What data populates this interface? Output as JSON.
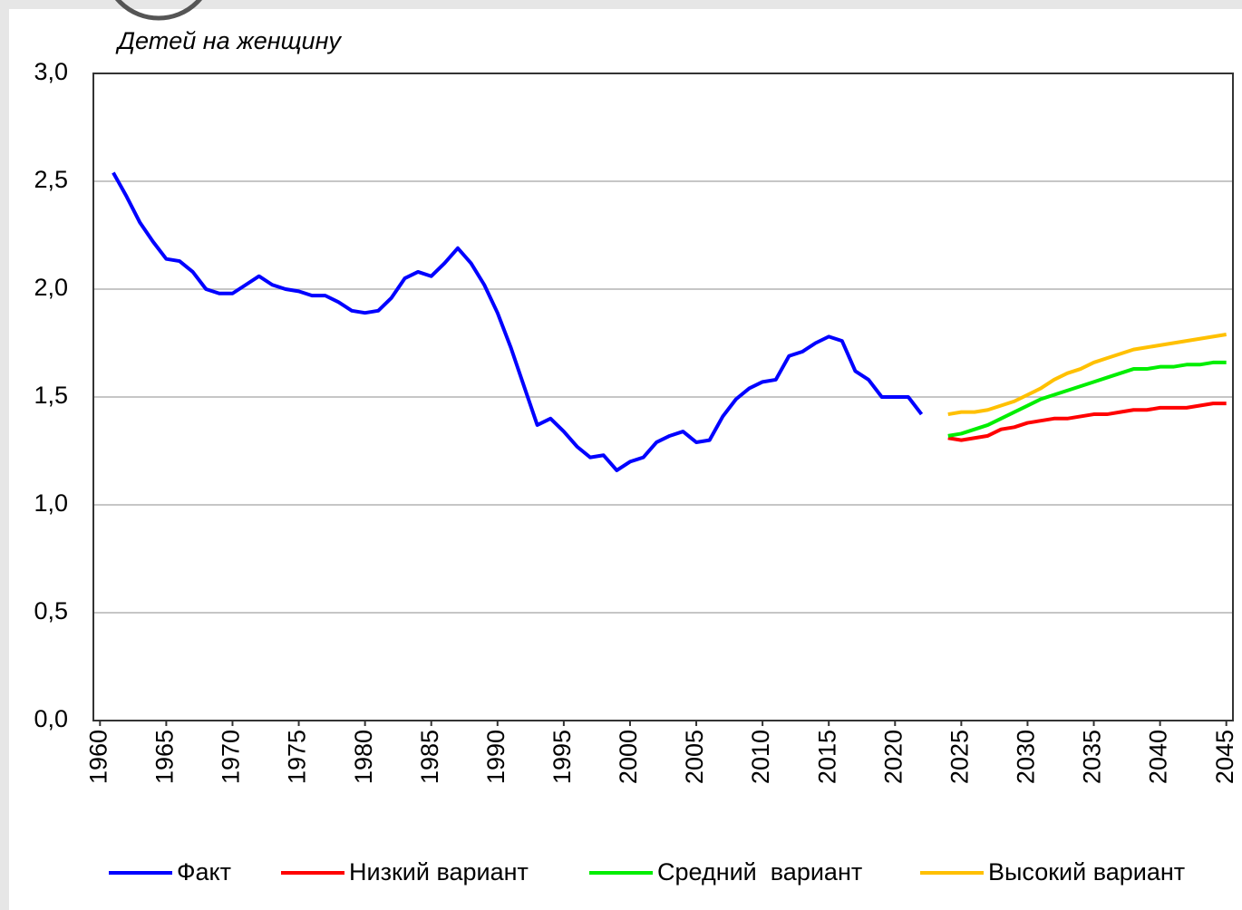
{
  "chart_data": {
    "type": "line",
    "ylabel": "Детей на женщину",
    "xlim": [
      1959.5,
      2045.5
    ],
    "xticks": [
      1960,
      1965,
      1970,
      1975,
      1980,
      1985,
      1990,
      1995,
      2000,
      2005,
      2010,
      2015,
      2020,
      2025,
      2030,
      2035,
      2040,
      2045
    ],
    "ylim": [
      0,
      3
    ],
    "yticks": [
      {
        "value": 0,
        "label": "0,0"
      },
      {
        "value": 0.5,
        "label": "0,5"
      },
      {
        "value": 1,
        "label": "1,0"
      },
      {
        "value": 1.5,
        "label": "1,5"
      },
      {
        "value": 2,
        "label": "2,0"
      },
      {
        "value": 2.5,
        "label": "2,5"
      },
      {
        "value": 3,
        "label": "3,0"
      }
    ],
    "grid": true,
    "legend": "bottom",
    "series": [
      {
        "name": "Факт",
        "color": "#0000ff",
        "x": [
          1961,
          1962,
          1963,
          1964,
          1965,
          1966,
          1967,
          1968,
          1969,
          1970,
          1971,
          1972,
          1973,
          1974,
          1975,
          1976,
          1977,
          1978,
          1979,
          1980,
          1981,
          1982,
          1983,
          1984,
          1985,
          1986,
          1987,
          1988,
          1989,
          1990,
          1991,
          1992,
          1993,
          1994,
          1995,
          1996,
          1997,
          1998,
          1999,
          2000,
          2001,
          2002,
          2003,
          2004,
          2005,
          2006,
          2007,
          2008,
          2009,
          2010,
          2011,
          2012,
          2013,
          2014,
          2015,
          2016,
          2017,
          2018,
          2019,
          2020,
          2021,
          2022
        ],
        "values": [
          2.54,
          2.43,
          2.31,
          2.22,
          2.14,
          2.13,
          2.08,
          2.0,
          1.98,
          1.98,
          2.02,
          2.06,
          2.02,
          2.0,
          1.99,
          1.97,
          1.97,
          1.94,
          1.9,
          1.89,
          1.9,
          1.96,
          2.05,
          2.08,
          2.06,
          2.12,
          2.19,
          2.12,
          2.02,
          1.89,
          1.73,
          1.55,
          1.37,
          1.4,
          1.34,
          1.27,
          1.22,
          1.23,
          1.16,
          1.2,
          1.22,
          1.29,
          1.32,
          1.34,
          1.29,
          1.3,
          1.41,
          1.49,
          1.54,
          1.57,
          1.58,
          1.69,
          1.71,
          1.75,
          1.78,
          1.76,
          1.62,
          1.58,
          1.5,
          1.5,
          1.5,
          1.42
        ]
      },
      {
        "name": "Низкий вариант",
        "color": "#ff0000",
        "x": [
          2024,
          2025,
          2026,
          2027,
          2028,
          2029,
          2030,
          2031,
          2032,
          2033,
          2034,
          2035,
          2036,
          2037,
          2038,
          2039,
          2040,
          2041,
          2042,
          2043,
          2044,
          2045
        ],
        "values": [
          1.31,
          1.3,
          1.31,
          1.32,
          1.35,
          1.36,
          1.38,
          1.39,
          1.4,
          1.4,
          1.41,
          1.42,
          1.42,
          1.43,
          1.44,
          1.44,
          1.45,
          1.45,
          1.45,
          1.46,
          1.47,
          1.47
        ]
      },
      {
        "name": "Средний  вариант",
        "color": "#00ee00",
        "x": [
          2024,
          2025,
          2026,
          2027,
          2028,
          2029,
          2030,
          2031,
          2032,
          2033,
          2034,
          2035,
          2036,
          2037,
          2038,
          2039,
          2040,
          2041,
          2042,
          2043,
          2044,
          2045
        ],
        "values": [
          1.32,
          1.33,
          1.35,
          1.37,
          1.4,
          1.43,
          1.46,
          1.49,
          1.51,
          1.53,
          1.55,
          1.57,
          1.59,
          1.61,
          1.63,
          1.63,
          1.64,
          1.64,
          1.65,
          1.65,
          1.66,
          1.66
        ]
      },
      {
        "name": "Высокий вариант",
        "color": "#ffc000",
        "x": [
          2024,
          2025,
          2026,
          2027,
          2028,
          2029,
          2030,
          2031,
          2032,
          2033,
          2034,
          2035,
          2036,
          2037,
          2038,
          2039,
          2040,
          2041,
          2042,
          2043,
          2044,
          2045
        ],
        "values": [
          1.42,
          1.43,
          1.43,
          1.44,
          1.46,
          1.48,
          1.51,
          1.54,
          1.58,
          1.61,
          1.63,
          1.66,
          1.68,
          1.7,
          1.72,
          1.73,
          1.74,
          1.75,
          1.76,
          1.77,
          1.78,
          1.79
        ]
      }
    ]
  }
}
